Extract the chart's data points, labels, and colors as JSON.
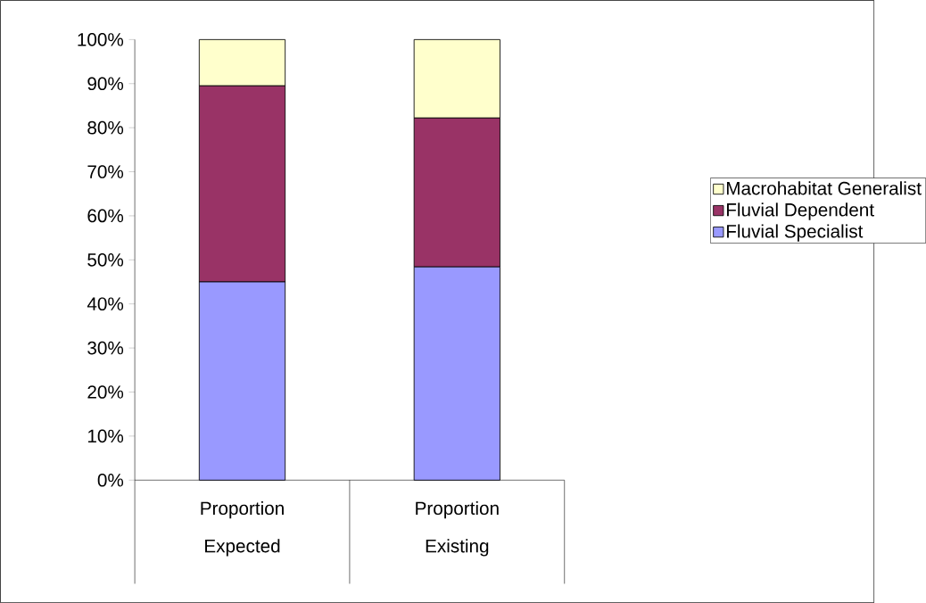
{
  "chart_data": {
    "type": "bar",
    "stacked": true,
    "categories": [
      "Proportion Expected",
      "Proportion Existing"
    ],
    "series": [
      {
        "name": "Fluvial Specialist",
        "color": "#9999ff",
        "values": [
          45.0,
          48.4
        ]
      },
      {
        "name": "Fluvial Dependent",
        "color": "#993366",
        "values": [
          44.5,
          33.8
        ]
      },
      {
        "name": "Macrohabitat Generalist",
        "color": "#ffffcc",
        "values": [
          10.5,
          17.8
        ]
      }
    ],
    "ylim": [
      0,
      100
    ],
    "yticks": [
      {
        "value": 0,
        "label": "0%"
      },
      {
        "value": 10,
        "label": "10%"
      },
      {
        "value": 20,
        "label": "20%"
      },
      {
        "value": 30,
        "label": "30%"
      },
      {
        "value": 40,
        "label": "40%"
      },
      {
        "value": 50,
        "label": "50%"
      },
      {
        "value": 60,
        "label": "60%"
      },
      {
        "value": 70,
        "label": "70%"
      },
      {
        "value": 80,
        "label": "80%"
      },
      {
        "value": 90,
        "label": "90%"
      },
      {
        "value": 100,
        "label": "100%"
      }
    ],
    "legend": "right"
  }
}
